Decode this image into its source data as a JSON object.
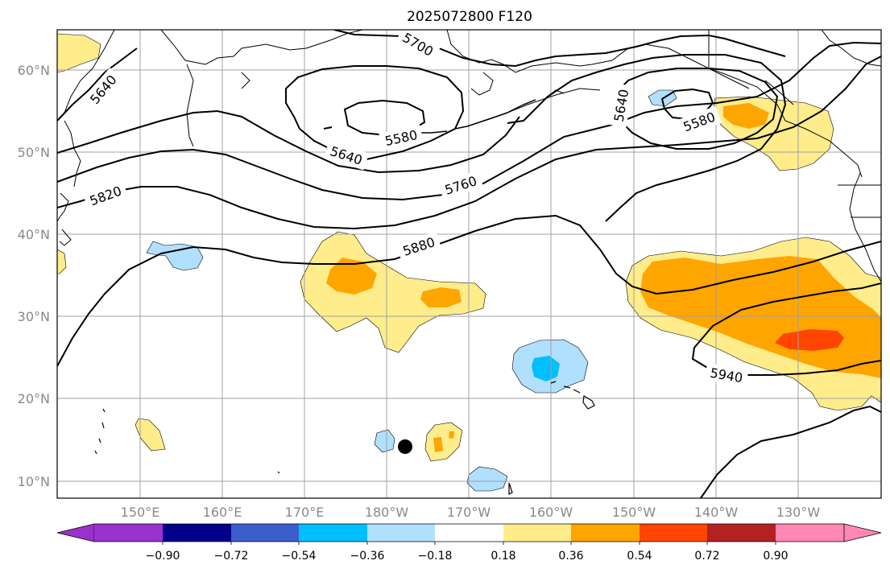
{
  "title": "2025072800 F120",
  "map": {
    "lon_ticks": [
      "150°E",
      "160°E",
      "170°E",
      "180°W",
      "170°W",
      "160°W",
      "150°W",
      "140°W",
      "130°W"
    ],
    "lat_ticks": [
      "60°N",
      "50°N",
      "40°N",
      "30°N",
      "20°N",
      "10°N"
    ],
    "contour_labels": [
      "5700",
      "5640",
      "5580",
      "5640",
      "5580",
      "5640",
      "5760",
      "5820",
      "5880",
      "5940"
    ],
    "marker": "filled-circle"
  },
  "colorbar": {
    "ticks": [
      "−0.90",
      "−0.72",
      "−0.54",
      "−0.36",
      "−0.18",
      "0.18",
      "0.36",
      "0.54",
      "0.72",
      "0.90"
    ],
    "colors": [
      "#9932cc",
      "#00008b",
      "#3a5fcd",
      "#00bfff",
      "#b0e0fe",
      "#ffffff",
      "#ffec8b",
      "#ffa500",
      "#ff4500",
      "#b22222",
      "#ff88b4"
    ]
  },
  "colors": {
    "pos1": "#ffec8b",
    "pos2": "#ffa500",
    "pos3": "#ff4500",
    "neg1": "#b0e0fe",
    "neg2": "#00bfff",
    "grid": "#a0a0a0"
  }
}
